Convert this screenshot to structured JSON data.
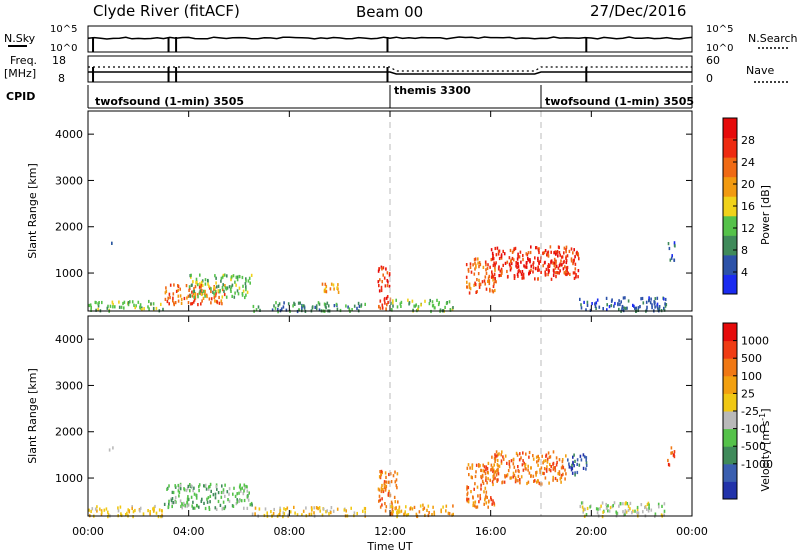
{
  "header": {
    "station": "Clyde River (fitACF)",
    "beam": "Beam 00",
    "date": "27/Dec/2016"
  },
  "top_panels": {
    "nsky_label": "N.Sky",
    "nsky_ticks": [
      "10^5",
      "10^0"
    ],
    "nsearch_label": "N.Search",
    "freq_label_1": "Freq.",
    "freq_label_2": "[MHz]",
    "freq_ticks": [
      "18",
      "8"
    ],
    "nave_label": "Nave",
    "nave_ticks": [
      "60",
      "0"
    ],
    "cpid_label": "CPID",
    "cpid_segments": [
      {
        "text": "twofsound (1-min) 3505",
        "start_hour": 0,
        "end_hour": 12
      },
      {
        "text": "themis 3300",
        "start_hour": 12,
        "end_hour": 18
      },
      {
        "text": "twofsound (1-min) 3505",
        "start_hour": 18,
        "end_hour": 24
      }
    ]
  },
  "x_axis": {
    "title": "Time UT",
    "range_hours": [
      0,
      24
    ],
    "tick_labels": [
      "00:00",
      "04:00",
      "08:00",
      "12:00",
      "16:00",
      "20:00",
      "00:00"
    ],
    "tick_hours": [
      0,
      4,
      8,
      12,
      16,
      20,
      24
    ]
  },
  "colors": {
    "power": [
      "#1a2bf0",
      "#2c52a8",
      "#3f8a5a",
      "#55c24a",
      "#f0d21a",
      "#f29a10",
      "#f06a14",
      "#ee2a10",
      "#e60a0a"
    ],
    "velocity": [
      "#2233aa",
      "#3a5fb0",
      "#3f8a5a",
      "#55c24a",
      "#b9b9b9",
      "#f0c814",
      "#f2a010",
      "#f07814",
      "#f03c14",
      "#e60a0a"
    ]
  },
  "chart_data": [
    {
      "type": "heatmap",
      "name": "Power",
      "ylabel": "Slant Range [km]",
      "ylim": [
        180,
        4500
      ],
      "yticks": [
        1000,
        2000,
        3000,
        4000
      ],
      "colorbar": {
        "label": "Power [dB]",
        "range": [
          0,
          32
        ],
        "ticks": [
          4,
          8,
          12,
          16,
          20,
          24,
          28
        ]
      },
      "clusters": [
        {
          "t": [
            0.8,
            1.0
          ],
          "r": [
            1580,
            1720
          ],
          "level": 2
        },
        {
          "t": [
            0.0,
            3.0
          ],
          "r": [
            200,
            420
          ],
          "level": 3
        },
        {
          "t": [
            3.0,
            5.5
          ],
          "r": [
            350,
            780
          ],
          "level": 6
        },
        {
          "t": [
            4.0,
            6.5
          ],
          "r": [
            500,
            1000
          ],
          "level": 3
        },
        {
          "t": [
            6.5,
            11.0
          ],
          "r": [
            200,
            400
          ],
          "level": 2
        },
        {
          "t": [
            9.0,
            10.0
          ],
          "r": [
            600,
            800
          ],
          "level": 5
        },
        {
          "t": [
            11.5,
            12.0
          ],
          "r": [
            250,
            1200
          ],
          "level": 7
        },
        {
          "t": [
            12.0,
            14.5
          ],
          "r": [
            200,
            450
          ],
          "level": 3
        },
        {
          "t": [
            15.0,
            16.2
          ],
          "r": [
            600,
            1350
          ],
          "level": 6
        },
        {
          "t": [
            16.0,
            19.5
          ],
          "r": [
            900,
            1600
          ],
          "level": 7
        },
        {
          "t": [
            17.0,
            17.6
          ],
          "r": [
            1000,
            1400
          ],
          "level": 8
        },
        {
          "t": [
            18.0,
            19.0
          ],
          "r": [
            1000,
            1500
          ],
          "level": 7
        },
        {
          "t": [
            19.5,
            23.0
          ],
          "r": [
            200,
            500
          ],
          "level": 1
        },
        {
          "t": [
            23.0,
            23.3
          ],
          "r": [
            1300,
            1700
          ],
          "level": 1
        }
      ]
    },
    {
      "type": "heatmap",
      "name": "Velocity",
      "ylabel": "Slant Range [km]",
      "ylim": [
        180,
        4500
      ],
      "yticks": [
        1000,
        2000,
        3000,
        4000
      ],
      "colorbar": {
        "label": "Velocity [m s^-1]",
        "range": [
          -1250,
          1250
        ],
        "ticks": [
          "1000",
          "500",
          "100",
          "25",
          "-25",
          "-100",
          "-500",
          "-1000"
        ]
      },
      "clusters": [
        {
          "t": [
            0.8,
            1.0
          ],
          "r": [
            1580,
            1720
          ],
          "level": 3
        },
        {
          "t": [
            0.0,
            3.0
          ],
          "r": [
            200,
            420
          ],
          "level": 5
        },
        {
          "t": [
            3.0,
            6.5
          ],
          "r": [
            350,
            900
          ],
          "level": 3
        },
        {
          "t": [
            6.5,
            11.0
          ],
          "r": [
            200,
            400
          ],
          "level": 5
        },
        {
          "t": [
            11.5,
            12.3
          ],
          "r": [
            250,
            1200
          ],
          "level": 7
        },
        {
          "t": [
            12.0,
            14.5
          ],
          "r": [
            200,
            450
          ],
          "level": 6
        },
        {
          "t": [
            15.0,
            16.2
          ],
          "r": [
            400,
            1350
          ],
          "level": 7
        },
        {
          "t": [
            16.0,
            19.0
          ],
          "r": [
            900,
            1600
          ],
          "level": 7
        },
        {
          "t": [
            19.0,
            19.8
          ],
          "r": [
            1100,
            1550
          ],
          "level": 1
        },
        {
          "t": [
            19.5,
            23.0
          ],
          "r": [
            200,
            500
          ],
          "level": 4
        },
        {
          "t": [
            23.0,
            23.3
          ],
          "r": [
            1300,
            1700
          ],
          "level": 8
        }
      ]
    }
  ]
}
